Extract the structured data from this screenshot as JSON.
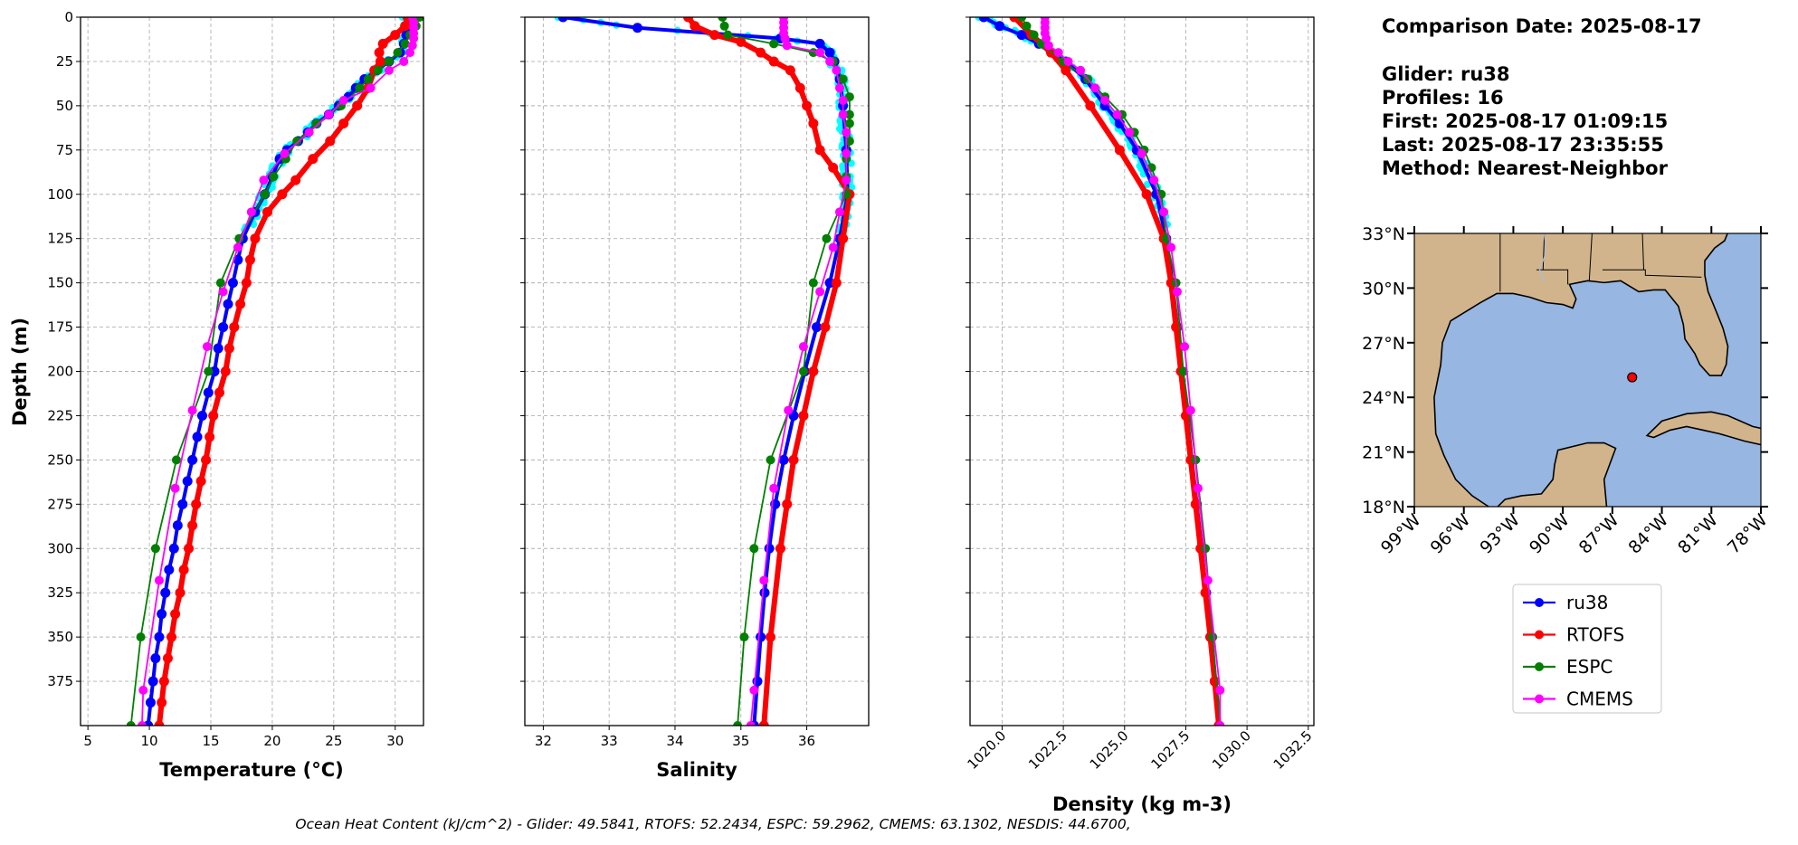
{
  "info": {
    "comparison_date": "Comparison Date: 2025-08-17",
    "glider": "Glider: ru38",
    "profiles": "Profiles: 16",
    "first": "First: 2025-08-17 01:09:15",
    "last": "Last: 2025-08-17 23:35:55",
    "method": "Method: Nearest-Neighbor"
  },
  "footer": "Ocean Heat Content (kJ/cm^2) - Glider: 49.5841,  RTOFS: 52.2434,  ESPC: 59.2962,  CMEMS: 63.1302,  NESDIS: 44.6700,",
  "colors": {
    "ru38": "#0000ff",
    "RTOFS": "#ff0000",
    "ESPC": "#008000",
    "CMEMS": "#ff00ff",
    "glider_profiles": "#00ffff",
    "land": "#d2b48c",
    "ocean": "#97b6e1"
  },
  "legend": [
    "ru38",
    "RTOFS",
    "ESPC",
    "CMEMS"
  ],
  "chart_data": [
    {
      "type": "line",
      "xlabel": "Temperature (°C)",
      "ylabel": "Depth (m)",
      "xlim": [
        4.4,
        32.3
      ],
      "ylim": [
        400,
        0
      ],
      "xticks": [
        5,
        10,
        15,
        20,
        25,
        30
      ],
      "yticks": [
        0,
        25,
        50,
        75,
        100,
        125,
        150,
        175,
        200,
        225,
        250,
        275,
        300,
        325,
        350,
        375
      ],
      "grid": true,
      "series": [
        {
          "name": "ru38",
          "depth": [
            0,
            5,
            10,
            15,
            20,
            25,
            30,
            35,
            40,
            45,
            50,
            55,
            60,
            65,
            70,
            75,
            80,
            90,
            100,
            110,
            125,
            137,
            150,
            162,
            175,
            187,
            200,
            212,
            225,
            237,
            250,
            262,
            275,
            287,
            300,
            312,
            325,
            337,
            350,
            362,
            375,
            387,
            400
          ],
          "values": [
            31.0,
            31.0,
            30.9,
            30.7,
            30.4,
            29.5,
            28.5,
            27.5,
            26.8,
            26.2,
            25.4,
            24.6,
            23.6,
            22.9,
            22.1,
            21.2,
            20.6,
            20.0,
            19.4,
            18.6,
            17.6,
            17.2,
            16.8,
            16.4,
            16.0,
            15.6,
            15.3,
            14.8,
            14.3,
            13.9,
            13.5,
            13.1,
            12.7,
            12.3,
            12.0,
            11.6,
            11.3,
            11.0,
            10.8,
            10.5,
            10.3,
            10.1,
            9.9
          ]
        },
        {
          "name": "RTOFS",
          "depth": [
            0,
            5,
            10,
            15,
            20,
            25,
            30,
            40,
            50,
            60,
            70,
            80,
            92,
            100,
            110,
            125,
            137,
            150,
            162,
            175,
            187,
            200,
            212,
            225,
            237,
            250,
            262,
            275,
            287,
            300,
            312,
            325,
            337,
            350,
            362,
            375,
            387,
            400
          ],
          "values": [
            31.0,
            30.8,
            30.0,
            29.0,
            28.7,
            28.8,
            28.3,
            27.8,
            26.9,
            25.8,
            24.7,
            23.3,
            21.9,
            20.8,
            19.6,
            18.6,
            18.2,
            17.9,
            17.4,
            16.9,
            16.5,
            16.2,
            15.7,
            15.2,
            14.9,
            14.6,
            14.2,
            13.8,
            13.5,
            13.2,
            12.8,
            12.5,
            12.1,
            11.8,
            11.5,
            11.2,
            11.0,
            10.8
          ]
        },
        {
          "name": "ESPC",
          "depth": [
            0,
            5,
            10,
            15,
            20,
            25,
            30,
            35,
            40,
            50,
            60,
            70,
            80,
            90,
            100,
            125,
            150,
            200,
            250,
            300,
            350,
            400
          ],
          "values": [
            32.0,
            31.7,
            31.2,
            30.8,
            30.2,
            29.5,
            28.6,
            27.8,
            27.1,
            25.6,
            23.6,
            22.0,
            21.1,
            20.1,
            19.4,
            17.3,
            15.8,
            14.8,
            12.2,
            10.5,
            9.3,
            8.5
          ]
        },
        {
          "name": "CMEMS",
          "depth": [
            0,
            3,
            6,
            9,
            12,
            16,
            20,
            25,
            30,
            40,
            47,
            55,
            65,
            77,
            92,
            110,
            130,
            155,
            186,
            222,
            266,
            318,
            380,
            400
          ],
          "values": [
            31.4,
            31.5,
            31.5,
            31.5,
            31.5,
            31.4,
            31.2,
            30.7,
            29.5,
            28.0,
            25.8,
            24.6,
            23.0,
            21.0,
            19.3,
            18.3,
            17.2,
            16.0,
            14.7,
            13.5,
            12.1,
            10.8,
            9.5,
            9.4
          ]
        }
      ]
    },
    {
      "type": "line",
      "xlabel": "Salinity",
      "ylabel": "",
      "xlim": [
        31.72,
        36.94
      ],
      "ylim": [
        400,
        0
      ],
      "xticks": [
        32,
        33,
        34,
        35,
        36
      ],
      "grid": true,
      "series": [
        {
          "name": "ru38",
          "depth": [
            0,
            6,
            12,
            15,
            20,
            25,
            35,
            50,
            75,
            100,
            125,
            150,
            175,
            200,
            225,
            250,
            275,
            300,
            325,
            350,
            375,
            400
          ],
          "values": [
            32.3,
            33.43,
            35.6,
            36.2,
            36.35,
            36.42,
            36.5,
            36.55,
            36.6,
            36.62,
            36.5,
            36.35,
            36.15,
            35.97,
            35.8,
            35.65,
            35.52,
            35.43,
            35.36,
            35.3,
            35.25,
            35.2
          ]
        },
        {
          "name": "RTOFS",
          "depth": [
            0,
            5,
            10,
            14,
            20,
            25,
            30,
            40,
            50,
            60,
            75,
            85,
            100,
            125,
            150,
            175,
            200,
            225,
            250,
            275,
            300,
            350,
            400
          ],
          "values": [
            34.2,
            34.3,
            34.6,
            35.0,
            35.3,
            35.5,
            35.75,
            35.9,
            36.0,
            36.1,
            36.2,
            36.4,
            36.65,
            36.55,
            36.45,
            36.28,
            36.1,
            35.95,
            35.8,
            35.7,
            35.6,
            35.45,
            35.35
          ]
        },
        {
          "name": "ESPC",
          "depth": [
            0,
            5,
            10,
            15,
            20,
            25,
            35,
            45,
            55,
            60,
            70,
            80,
            90,
            100,
            125,
            150,
            200,
            250,
            300,
            350,
            400
          ],
          "values": [
            34.72,
            34.75,
            34.8,
            35.5,
            36.1,
            36.4,
            36.55,
            36.65,
            36.65,
            36.65,
            36.65,
            36.6,
            36.6,
            36.6,
            36.3,
            36.1,
            35.95,
            35.45,
            35.2,
            35.05,
            34.95
          ]
        },
        {
          "name": "CMEMS",
          "depth": [
            0,
            3,
            6,
            9,
            12,
            16,
            20,
            25,
            30,
            40,
            47,
            55,
            65,
            77,
            92,
            110,
            130,
            155,
            186,
            222,
            266,
            318,
            380,
            400
          ],
          "values": [
            35.65,
            35.65,
            35.65,
            35.65,
            35.67,
            35.7,
            36.2,
            36.35,
            36.45,
            36.5,
            36.55,
            36.55,
            36.6,
            36.6,
            36.6,
            36.5,
            36.4,
            36.2,
            35.95,
            35.72,
            35.5,
            35.35,
            35.2,
            35.15
          ]
        }
      ]
    },
    {
      "type": "line",
      "xlabel": "Density (kg m-3)",
      "ylabel": "",
      "xlim": [
        1018.69,
        1032.73
      ],
      "ylim": [
        400,
        0
      ],
      "xticks": [
        "1020.0",
        "1022.5",
        "1025.0",
        "1027.5",
        "1030.0",
        "1032.5"
      ],
      "grid": true,
      "series": [
        {
          "name": "ru38",
          "depth": [
            0,
            5,
            10,
            15,
            20,
            25,
            35,
            50,
            60,
            75,
            100,
            125,
            150,
            175,
            200,
            225,
            250,
            275,
            300,
            325,
            350,
            375,
            400
          ],
          "values": [
            1019.25,
            1019.9,
            1020.8,
            1021.5,
            1022.0,
            1022.6,
            1023.4,
            1024.2,
            1024.8,
            1025.5,
            1026.3,
            1026.7,
            1026.95,
            1027.15,
            1027.35,
            1027.55,
            1027.75,
            1027.95,
            1028.15,
            1028.33,
            1028.5,
            1028.68,
            1028.85
          ]
        },
        {
          "name": "RTOFS",
          "depth": [
            0,
            10,
            20,
            30,
            50,
            75,
            100,
            125,
            150,
            175,
            200,
            225,
            250,
            275,
            300,
            325,
            350,
            375,
            400
          ],
          "values": [
            1020.5,
            1021.2,
            1022.0,
            1022.6,
            1023.6,
            1024.8,
            1025.9,
            1026.6,
            1026.9,
            1027.1,
            1027.3,
            1027.5,
            1027.7,
            1027.9,
            1028.1,
            1028.3,
            1028.5,
            1028.68,
            1028.85
          ]
        },
        {
          "name": "ESPC",
          "depth": [
            0,
            5,
            10,
            15,
            25,
            35,
            45,
            55,
            65,
            75,
            85,
            100,
            125,
            150,
            200,
            250,
            300,
            350,
            400
          ],
          "values": [
            1020.8,
            1021.0,
            1021.3,
            1021.6,
            1022.5,
            1023.5,
            1024.2,
            1024.9,
            1025.4,
            1025.8,
            1026.1,
            1026.5,
            1026.7,
            1027.1,
            1027.4,
            1027.9,
            1028.3,
            1028.6,
            1028.9
          ]
        },
        {
          "name": "CMEMS",
          "depth": [
            0,
            3,
            6,
            9,
            12,
            16,
            20,
            25,
            30,
            40,
            47,
            55,
            65,
            77,
            92,
            110,
            130,
            155,
            186,
            222,
            266,
            318,
            380,
            400
          ],
          "values": [
            1021.75,
            1021.75,
            1021.75,
            1021.75,
            1021.8,
            1021.9,
            1022.3,
            1022.7,
            1023.2,
            1023.8,
            1024.2,
            1024.7,
            1025.2,
            1025.7,
            1026.2,
            1026.6,
            1026.9,
            1027.15,
            1027.45,
            1027.7,
            1028.0,
            1028.4,
            1028.9,
            1028.9
          ]
        }
      ]
    },
    {
      "type": "map",
      "lon_range": [
        -99,
        -78
      ],
      "lat_range": [
        18,
        33
      ],
      "lon_ticks": [
        "99°W",
        "96°W",
        "93°W",
        "90°W",
        "87°W",
        "84°W",
        "81°W",
        "78°W"
      ],
      "lat_ticks": [
        "18°N",
        "21°N",
        "24°N",
        "27°N",
        "30°N",
        "33°N"
      ],
      "glider_location": {
        "lon": -85.8,
        "lat": 25.1
      }
    }
  ]
}
